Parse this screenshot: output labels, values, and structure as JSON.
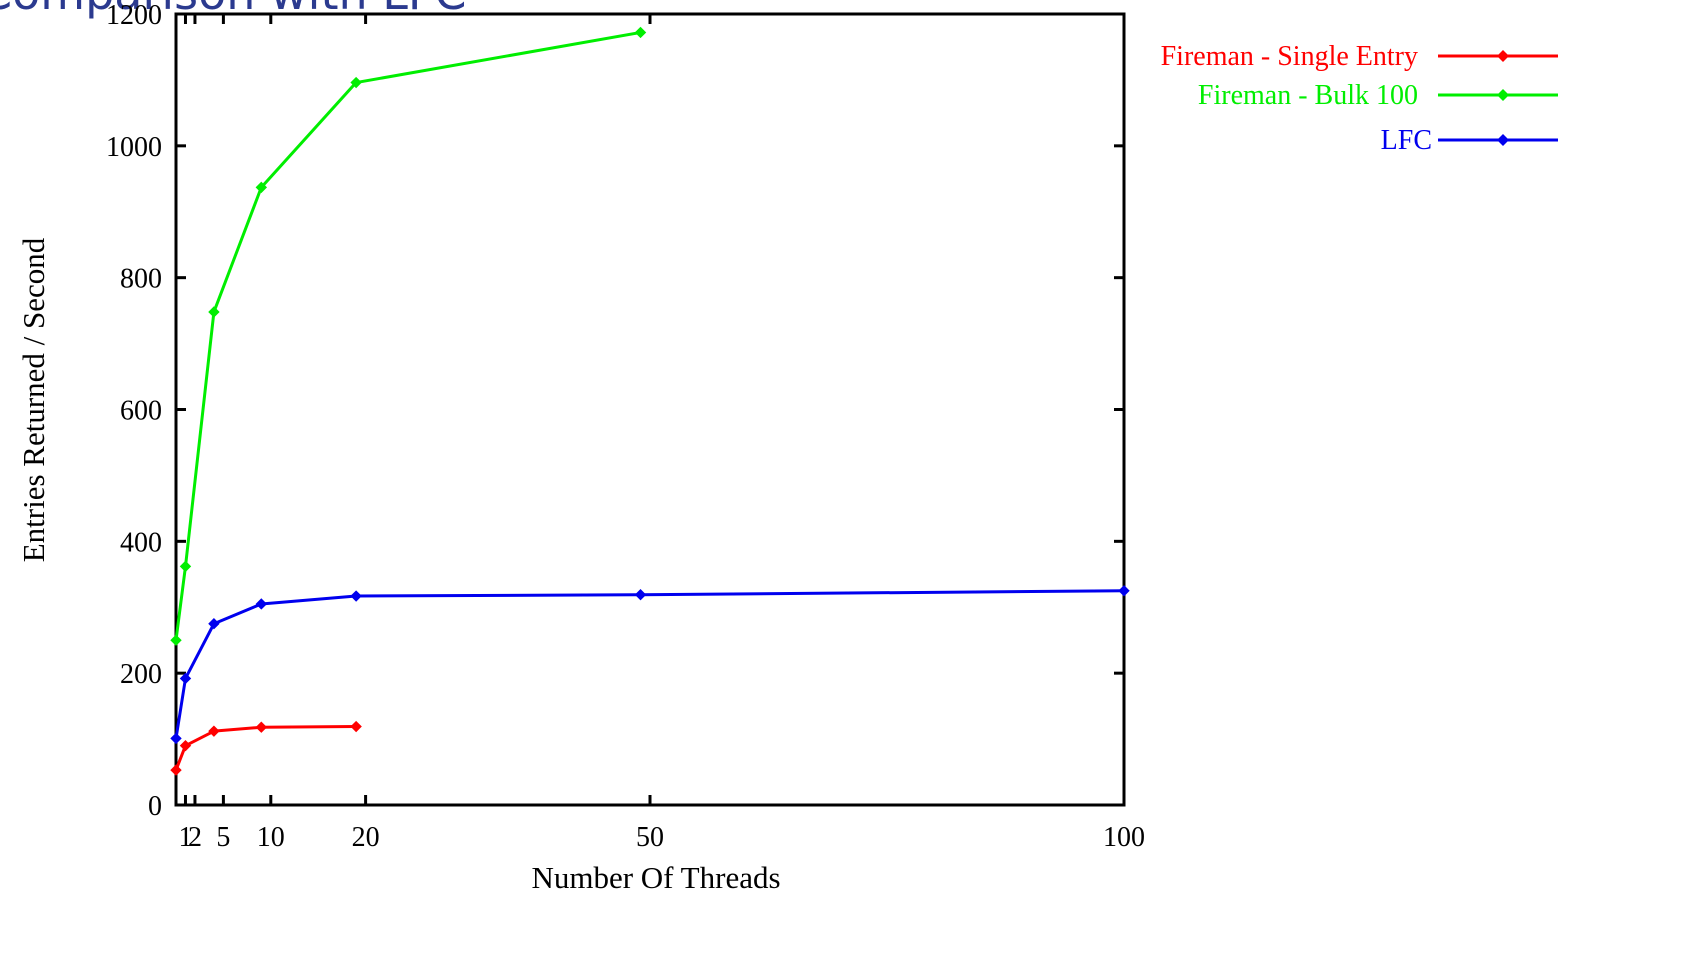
{
  "page": {
    "title": "Comparison with LFC"
  },
  "chart_data": {
    "type": "line",
    "title": "",
    "xlabel": "Number Of Threads",
    "ylabel": "Entries Returned / Second",
    "xlim": [
      0,
      100
    ],
    "ylim": [
      0,
      1200
    ],
    "x_ticks": [
      1,
      2,
      5,
      10,
      20,
      50,
      100
    ],
    "x_tick_labels": [
      "1",
      "2",
      "5",
      "10",
      "20",
      "50",
      "100"
    ],
    "y_ticks": [
      0,
      200,
      400,
      600,
      800,
      1000,
      1200
    ],
    "y_tick_labels": [
      "0",
      "200",
      "400",
      "600",
      "800",
      "1000",
      "1200"
    ],
    "grid": false,
    "legend_position": "right",
    "series": [
      {
        "name": "Fireman - Single Entry",
        "color": "#ff0000",
        "marker": "diamond",
        "x": [
          0,
          1,
          4,
          9,
          19
        ],
        "y": [
          53,
          90,
          112,
          118,
          119
        ]
      },
      {
        "name": "Fireman - Bulk 100",
        "color": "#00ee00",
        "marker": "diamond",
        "x": [
          0,
          1,
          4,
          9,
          19,
          49
        ],
        "y": [
          250,
          362,
          748,
          937,
          1096,
          1172
        ]
      },
      {
        "name": "LFC",
        "color": "#0000ee",
        "marker": "diamond",
        "x": [
          0,
          1,
          4,
          9,
          19,
          49,
          100
        ],
        "y": [
          101,
          192,
          275,
          305,
          317,
          319,
          325
        ]
      }
    ]
  }
}
